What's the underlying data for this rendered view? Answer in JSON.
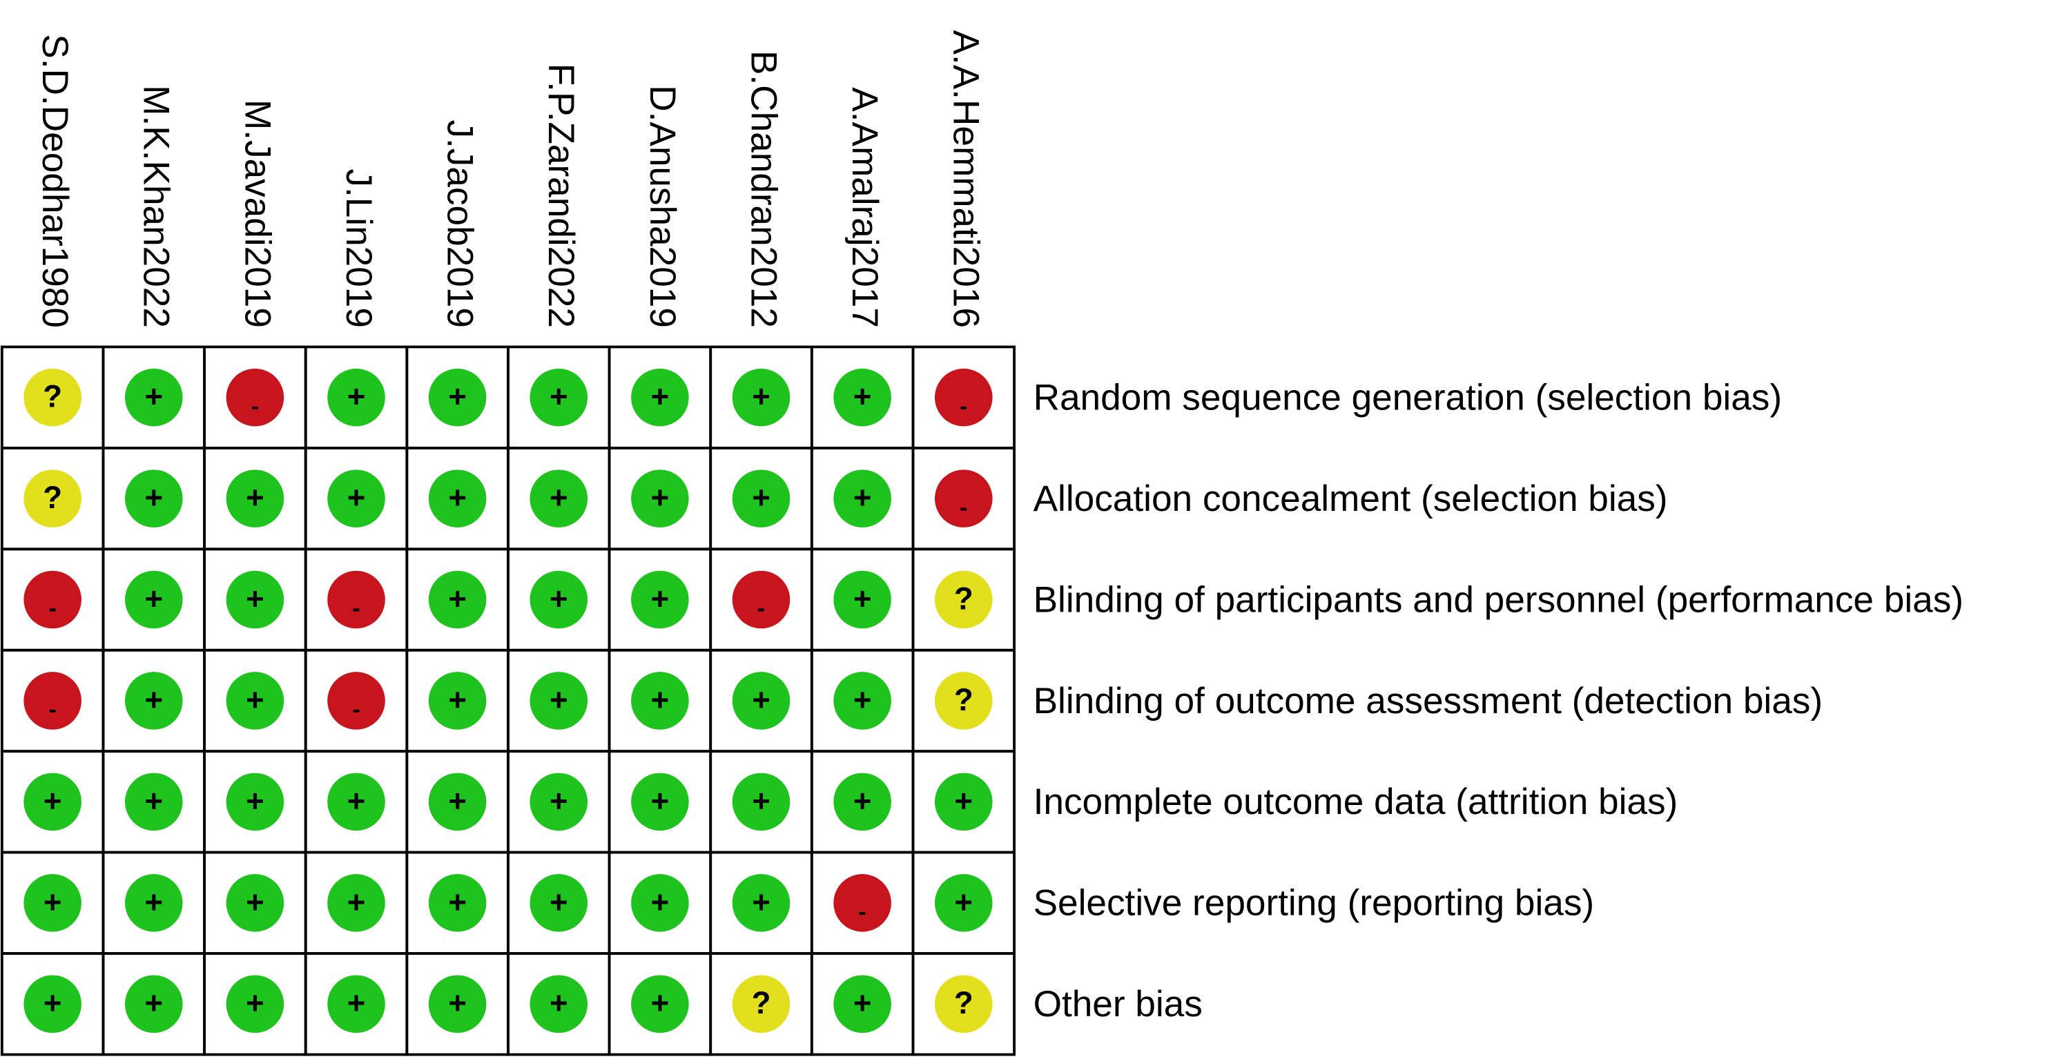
{
  "studies": [
    "S.D.Deodhar1980",
    "M.K.Khan2022",
    "M.Javadi2019",
    "J.Lin2019",
    "J.Jacob2019",
    "F.P.Zarandi2022",
    "D.Anusha2019",
    "B.Chandran2012",
    "A.Amalraj2017",
    "A.A.Hemmati2016"
  ],
  "domains": [
    "Random sequence generation (selection bias)",
    "Allocation concealment (selection bias)",
    "Blinding of participants and personnel (performance bias)",
    "Blinding of outcome assessment (detection bias)",
    "Incomplete outcome data (attrition bias)",
    "Selective reporting (reporting bias)",
    "Other bias"
  ],
  "judgements": [
    [
      "?",
      "+",
      "-",
      "+",
      "+",
      "+",
      "+",
      "+",
      "+",
      "-"
    ],
    [
      "?",
      "+",
      "+",
      "+",
      "+",
      "+",
      "+",
      "+",
      "+",
      "-"
    ],
    [
      "-",
      "+",
      "+",
      "-",
      "+",
      "+",
      "+",
      "-",
      "+",
      "?"
    ],
    [
      "-",
      "+",
      "+",
      "-",
      "+",
      "+",
      "+",
      "+",
      "+",
      "?"
    ],
    [
      "+",
      "+",
      "+",
      "+",
      "+",
      "+",
      "+",
      "+",
      "+",
      "+"
    ],
    [
      "+",
      "+",
      "+",
      "+",
      "+",
      "+",
      "+",
      "+",
      "-",
      "+"
    ],
    [
      "+",
      "+",
      "+",
      "+",
      "+",
      "+",
      "+",
      "?",
      "+",
      "?"
    ]
  ],
  "colors": {
    "+": "#1ec31e",
    "-": "#c8141c",
    "?": "#e2e01c"
  }
}
